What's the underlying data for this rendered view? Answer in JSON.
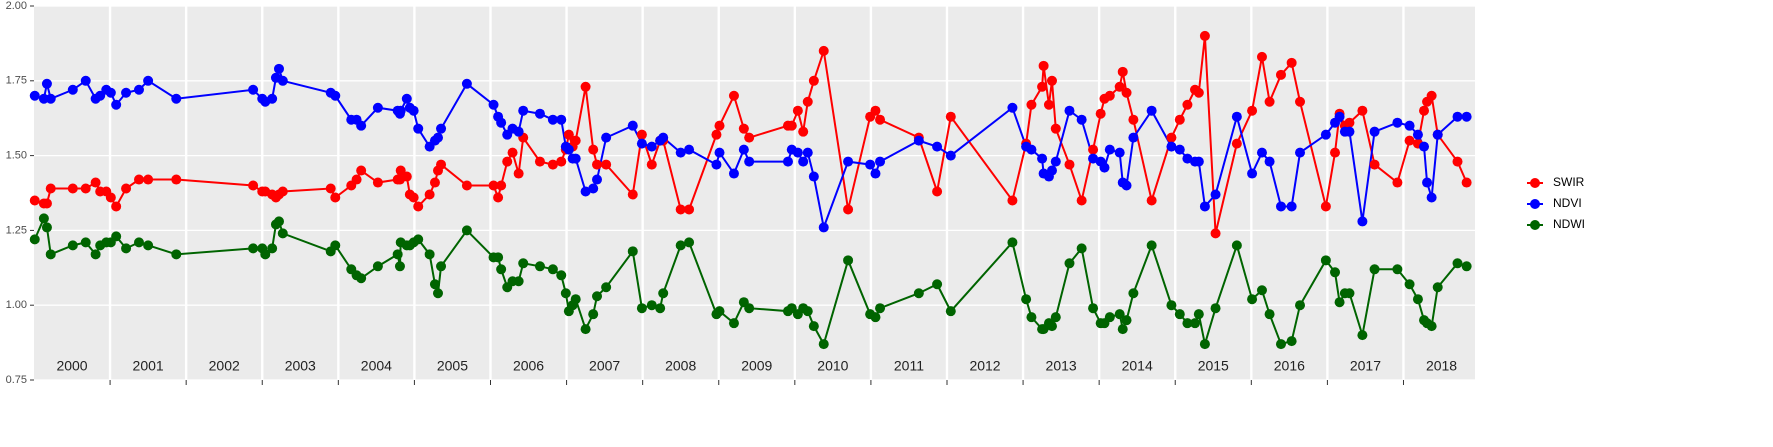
{
  "chart_data": {
    "type": "line",
    "x": [
      2000.01,
      2000.13,
      2000.17,
      2000.22,
      2000.51,
      2000.68,
      2000.81,
      2000.87,
      2000.95,
      2001.01,
      2001.08,
      2001.21,
      2001.38,
      2001.5,
      2001.87,
      2002.88,
      2003.0,
      2003.04,
      2003.13,
      2003.18,
      2003.22,
      2003.27,
      2003.9,
      2003.96,
      2004.17,
      2004.24,
      2004.3,
      2004.52,
      2004.78,
      2004.81,
      2004.82,
      2004.9,
      2004.94,
      2004.99,
      2005.05,
      2005.2,
      2005.27,
      2005.31,
      2005.35,
      2005.69,
      2006.04,
      2006.1,
      2006.14,
      2006.22,
      2006.29,
      2006.37,
      2006.43,
      2006.65,
      2006.82,
      2006.93,
      2006.99,
      2007.03,
      2007.08,
      2007.12,
      2007.25,
      2007.35,
      2007.4,
      2007.52,
      2007.87,
      2007.99,
      2008.12,
      2008.23,
      2008.27,
      2008.5,
      2008.61,
      2008.97,
      2009.01,
      2009.2,
      2009.33,
      2009.4,
      2009.91,
      2009.96,
      2010.04,
      2010.11,
      2010.17,
      2010.25,
      2010.38,
      2010.7,
      2010.99,
      2011.06,
      2011.12,
      2011.63,
      2011.87,
      2012.05,
      2012.86,
      2013.04,
      2013.11,
      2013.25,
      2013.27,
      2013.34,
      2013.38,
      2013.43,
      2013.61,
      2013.77,
      2013.92,
      2014.02,
      2014.07,
      2014.14,
      2014.27,
      2014.31,
      2014.36,
      2014.45,
      2014.69,
      2014.95,
      2015.06,
      2015.16,
      2015.26,
      2015.31,
      2015.39,
      2015.53,
      2015.81,
      2016.01,
      2016.14,
      2016.24,
      2016.39,
      2016.53,
      2016.64,
      2016.98,
      2017.1,
      2017.16,
      2017.23,
      2017.29,
      2017.46,
      2017.62,
      2017.92,
      2018.08,
      2018.19,
      2018.27,
      2018.31,
      2018.37,
      2018.45,
      2018.71,
      2018.83
    ],
    "series": [
      {
        "name": "SWIR",
        "color": "#ff0000",
        "values": [
          1.35,
          1.34,
          1.34,
          1.39,
          1.39,
          1.39,
          1.41,
          1.38,
          1.38,
          1.36,
          1.33,
          1.39,
          1.42,
          1.42,
          1.42,
          1.4,
          1.38,
          1.38,
          1.37,
          1.36,
          1.37,
          1.38,
          1.39,
          1.36,
          1.4,
          1.42,
          1.45,
          1.41,
          1.42,
          1.42,
          1.45,
          1.43,
          1.37,
          1.36,
          1.33,
          1.37,
          1.41,
          1.45,
          1.47,
          1.4,
          1.4,
          1.36,
          1.4,
          1.48,
          1.51,
          1.44,
          1.56,
          1.48,
          1.47,
          1.48,
          1.52,
          1.57,
          1.53,
          1.55,
          1.73,
          1.52,
          1.47,
          1.47,
          1.37,
          1.57,
          1.47,
          1.55,
          1.55,
          1.32,
          1.32,
          1.57,
          1.6,
          1.7,
          1.59,
          1.56,
          1.6,
          1.6,
          1.65,
          1.58,
          1.68,
          1.75,
          1.85,
          1.32,
          1.63,
          1.65,
          1.62,
          1.56,
          1.38,
          1.63,
          1.35,
          1.54,
          1.67,
          1.73,
          1.8,
          1.67,
          1.75,
          1.59,
          1.47,
          1.35,
          1.52,
          1.64,
          1.69,
          1.7,
          1.73,
          1.78,
          1.71,
          1.62,
          1.35,
          1.56,
          1.62,
          1.67,
          1.72,
          1.71,
          1.9,
          1.24,
          1.54,
          1.65,
          1.83,
          1.68,
          1.77,
          1.81,
          1.68,
          1.33,
          1.51,
          1.64,
          1.6,
          1.61,
          1.65,
          1.47,
          1.41,
          1.55,
          1.54,
          1.65,
          1.68,
          1.7,
          1.57,
          1.48,
          1.41
        ]
      },
      {
        "name": "NDVI",
        "color": "#0000ff",
        "values": [
          1.7,
          1.69,
          1.74,
          1.69,
          1.72,
          1.75,
          1.69,
          1.7,
          1.72,
          1.71,
          1.67,
          1.71,
          1.72,
          1.75,
          1.69,
          1.72,
          1.69,
          1.68,
          1.69,
          1.76,
          1.79,
          1.75,
          1.71,
          1.7,
          1.62,
          1.62,
          1.6,
          1.66,
          1.65,
          1.64,
          1.65,
          1.69,
          1.66,
          1.65,
          1.59,
          1.53,
          1.55,
          1.56,
          1.59,
          1.74,
          1.67,
          1.63,
          1.61,
          1.57,
          1.59,
          1.58,
          1.65,
          1.64,
          1.62,
          1.62,
          1.53,
          1.52,
          1.49,
          1.49,
          1.38,
          1.39,
          1.42,
          1.56,
          1.6,
          1.54,
          1.53,
          1.55,
          1.56,
          1.51,
          1.52,
          1.47,
          1.51,
          1.44,
          1.52,
          1.48,
          1.48,
          1.52,
          1.51,
          1.48,
          1.51,
          1.43,
          1.26,
          1.48,
          1.47,
          1.44,
          1.48,
          1.55,
          1.53,
          1.5,
          1.66,
          1.53,
          1.52,
          1.49,
          1.44,
          1.43,
          1.45,
          1.48,
          1.65,
          1.62,
          1.49,
          1.48,
          1.46,
          1.52,
          1.51,
          1.41,
          1.4,
          1.56,
          1.65,
          1.53,
          1.52,
          1.49,
          1.48,
          1.48,
          1.33,
          1.37,
          1.63,
          1.44,
          1.51,
          1.48,
          1.33,
          1.33,
          1.51,
          1.57,
          1.61,
          1.63,
          1.58,
          1.58,
          1.28,
          1.58,
          1.61,
          1.6,
          1.57,
          1.53,
          1.41,
          1.36,
          1.57,
          1.63,
          1.63
        ]
      },
      {
        "name": "NDWI",
        "color": "#006400",
        "values": [
          1.22,
          1.29,
          1.26,
          1.17,
          1.2,
          1.21,
          1.17,
          1.2,
          1.21,
          1.21,
          1.23,
          1.19,
          1.21,
          1.2,
          1.17,
          1.19,
          1.19,
          1.17,
          1.19,
          1.27,
          1.28,
          1.24,
          1.18,
          1.2,
          1.12,
          1.1,
          1.09,
          1.13,
          1.17,
          1.13,
          1.21,
          1.2,
          1.2,
          1.21,
          1.22,
          1.17,
          1.07,
          1.04,
          1.13,
          1.25,
          1.16,
          1.16,
          1.12,
          1.06,
          1.08,
          1.08,
          1.14,
          1.13,
          1.12,
          1.1,
          1.04,
          0.98,
          1.0,
          1.02,
          0.92,
          0.97,
          1.03,
          1.06,
          1.18,
          0.99,
          1.0,
          0.99,
          1.04,
          1.2,
          1.21,
          0.97,
          0.98,
          0.94,
          1.01,
          0.99,
          0.98,
          0.99,
          0.97,
          0.99,
          0.98,
          0.93,
          0.87,
          1.15,
          0.97,
          0.96,
          0.99,
          1.04,
          1.07,
          0.98,
          1.21,
          1.02,
          0.96,
          0.92,
          0.92,
          0.94,
          0.93,
          0.96,
          1.14,
          1.19,
          0.99,
          0.94,
          0.94,
          0.96,
          0.97,
          0.92,
          0.95,
          1.04,
          1.2,
          1.0,
          0.97,
          0.94,
          0.94,
          0.97,
          0.87,
          0.99,
          1.2,
          1.02,
          1.05,
          0.97,
          0.87,
          0.88,
          1.0,
          1.15,
          1.11,
          1.01,
          1.04,
          1.04,
          0.9,
          1.12,
          1.12,
          1.07,
          1.02,
          0.95,
          0.94,
          0.93,
          1.06,
          1.14,
          1.13
        ]
      }
    ],
    "xlim": [
      2000,
      2018.94
    ],
    "ylim": [
      0.75,
      2.0
    ],
    "yticks": [
      {
        "value": 0.75,
        "label": "0.75"
      },
      {
        "value": 1.0,
        "label": "1.00"
      },
      {
        "value": 1.25,
        "label": "1.25"
      },
      {
        "value": 1.5,
        "label": "1.50"
      },
      {
        "value": 1.75,
        "label": "1.75"
      },
      {
        "value": 2.0,
        "label": "2.00"
      }
    ],
    "xticks": [
      {
        "value": 2000.5,
        "label": "2000"
      },
      {
        "value": 2001.5,
        "label": "2001"
      },
      {
        "value": 2002.5,
        "label": "2002"
      },
      {
        "value": 2003.5,
        "label": "2003"
      },
      {
        "value": 2004.5,
        "label": "2004"
      },
      {
        "value": 2005.5,
        "label": "2005"
      },
      {
        "value": 2006.5,
        "label": "2006"
      },
      {
        "value": 2007.5,
        "label": "2007"
      },
      {
        "value": 2008.5,
        "label": "2008"
      },
      {
        "value": 2009.5,
        "label": "2009"
      },
      {
        "value": 2010.5,
        "label": "2010"
      },
      {
        "value": 2011.5,
        "label": "2011"
      },
      {
        "value": 2012.5,
        "label": "2012"
      },
      {
        "value": 2013.5,
        "label": "2013"
      },
      {
        "value": 2014.5,
        "label": "2014"
      },
      {
        "value": 2015.5,
        "label": "2015"
      },
      {
        "value": 2016.5,
        "label": "2016"
      },
      {
        "value": 2017.5,
        "label": "2017"
      },
      {
        "value": 2018.5,
        "label": "2018"
      }
    ],
    "xgrid": [
      2001,
      2002,
      2003,
      2004,
      2005,
      2006,
      2007,
      2008,
      2009,
      2010,
      2011,
      2012,
      2013,
      2014,
      2015,
      2016,
      2017,
      2018
    ],
    "grid": true,
    "legend": "right"
  }
}
